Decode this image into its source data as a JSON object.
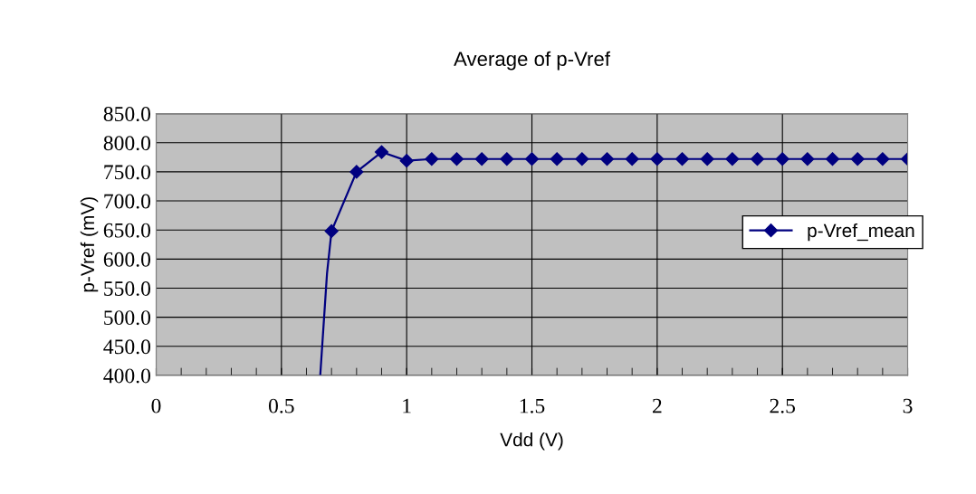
{
  "chart_data": {
    "type": "line",
    "title": "Average of p-Vref",
    "xlabel": "Vdd (V)",
    "ylabel": "p-Vref (mV)",
    "xlim": [
      0,
      3
    ],
    "ylim": [
      400,
      850
    ],
    "xticks": [
      0,
      0.5,
      1,
      1.5,
      2,
      2.5,
      3,
      {
        "value": 0.1,
        "label": null
      },
      {
        "value": 0.2,
        "label": null
      },
      {
        "value": 0.3,
        "label": null
      },
      {
        "value": 0.4,
        "label": null
      },
      {
        "value": 0.6,
        "label": null
      },
      {
        "value": 0.7,
        "label": null
      },
      {
        "value": 0.8,
        "label": null
      },
      {
        "value": 0.9,
        "label": null
      },
      {
        "value": 1.1,
        "label": null
      },
      {
        "value": 1.2,
        "label": null
      },
      {
        "value": 1.3,
        "label": null
      },
      {
        "value": 1.4,
        "label": null
      },
      {
        "value": 1.6,
        "label": null
      },
      {
        "value": 1.7,
        "label": null
      },
      {
        "value": 1.8,
        "label": null
      },
      {
        "value": 1.9,
        "label": null
      },
      {
        "value": 2.1,
        "label": null
      },
      {
        "value": 2.2,
        "label": null
      },
      {
        "value": 2.3,
        "label": null
      },
      {
        "value": 2.4,
        "label": null
      },
      {
        "value": 2.6,
        "label": null
      },
      {
        "value": 2.7,
        "label": null
      },
      {
        "value": 2.8,
        "label": null
      },
      {
        "value": 2.9,
        "label": null
      }
    ],
    "yticks": [
      {
        "value": 400,
        "label": "400.0"
      },
      {
        "value": 450,
        "label": "450.0"
      },
      {
        "value": 500,
        "label": "500.0"
      },
      {
        "value": 550,
        "label": "550.0"
      },
      {
        "value": 600,
        "label": "600.0"
      },
      {
        "value": 650,
        "label": "650.0"
      },
      {
        "value": 700,
        "label": "700.0"
      },
      {
        "value": 750,
        "label": "750.0"
      },
      {
        "value": 800,
        "label": "800.0"
      },
      {
        "value": 850,
        "label": "850.0"
      }
    ],
    "grid": true,
    "legend": "right",
    "marker": "diamond",
    "line_style": "solid",
    "series": [
      {
        "name": "p-Vref_mean",
        "color": "#000080",
        "x": [
          0.7,
          0.8,
          0.9,
          1.0,
          1.1,
          1.2,
          1.3,
          1.4,
          1.5,
          1.6,
          1.7,
          1.8,
          1.9,
          2.0,
          2.1,
          2.2,
          2.3,
          2.4,
          2.5,
          2.6,
          2.7,
          2.8,
          2.9,
          3.0
        ],
        "values": [
          648,
          750,
          784,
          769,
          772,
          772,
          772,
          772,
          772,
          772,
          772,
          772,
          772,
          772,
          772,
          772,
          772,
          772,
          772,
          772,
          772,
          772,
          772,
          772
        ]
      },
      {
        "color": "#000080",
        "marker": "none",
        "x": [
          0.655,
          0.682,
          0.7
        ],
        "values": [
          400,
          575,
          648
        ]
      }
    ]
  }
}
